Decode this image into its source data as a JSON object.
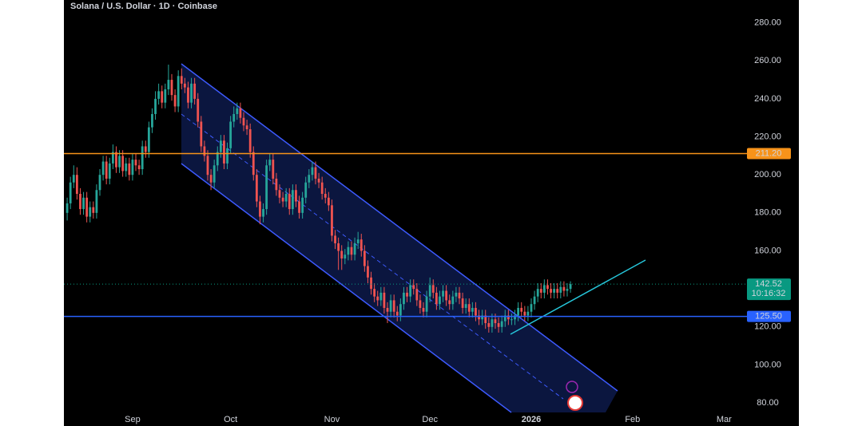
{
  "chart_data": {
    "type": "candlestick",
    "title": "Solana / U.S. Dollar · 1D · Coinbase",
    "x": [
      -20,
      -19,
      -18,
      -17,
      -16,
      -15,
      -14,
      -13,
      -12,
      -11,
      -10,
      -9,
      -8,
      -7,
      -6,
      -5,
      -4,
      -3,
      -2,
      -1,
      0,
      1,
      2,
      3,
      4,
      5,
      6,
      7,
      8,
      9,
      10,
      11,
      12,
      13,
      14,
      15,
      16,
      17,
      18,
      19,
      20,
      21,
      22,
      23,
      24,
      25,
      26,
      27,
      28,
      29,
      30,
      31,
      32,
      33,
      34,
      35,
      36,
      37,
      38,
      39,
      40,
      41,
      42,
      43,
      44,
      45,
      46,
      47,
      48,
      49,
      50,
      51,
      52,
      53,
      54,
      55,
      56,
      57,
      58,
      59,
      60,
      61,
      62,
      63,
      64,
      65,
      66,
      67,
      68,
      69,
      70,
      71,
      72,
      73,
      74,
      75,
      76,
      77,
      78,
      79,
      80,
      81,
      82,
      83,
      84,
      85,
      86,
      87,
      88,
      89,
      90,
      91,
      92,
      93,
      94,
      95,
      96,
      97,
      98,
      99,
      100,
      101,
      102,
      103,
      104,
      105,
      106,
      107,
      108,
      109,
      110,
      111,
      112,
      113,
      114,
      115,
      116,
      117,
      118,
      119,
      120,
      121,
      122,
      123,
      124,
      125,
      126,
      127,
      128,
      129,
      130,
      131,
      132,
      133,
      134
    ],
    "open": [
      180,
      185,
      196,
      200,
      190,
      182,
      188,
      178,
      183,
      180,
      192,
      200,
      207,
      198,
      206,
      212,
      204,
      210,
      202,
      206,
      200,
      208,
      205,
      203,
      215,
      212,
      225,
      232,
      240,
      244,
      238,
      245,
      250,
      242,
      236,
      252,
      248,
      246,
      238,
      248,
      240,
      228,
      215,
      210,
      200,
      196,
      205,
      212,
      218,
      206,
      214,
      228,
      232,
      235,
      230,
      226,
      224,
      212,
      200,
      186,
      178,
      182,
      205,
      208,
      198,
      192,
      188,
      186,
      190,
      182,
      192,
      186,
      180,
      188,
      196,
      200,
      204,
      198,
      196,
      190,
      188,
      184,
      168,
      164,
      160,
      156,
      158,
      162,
      158,
      164,
      166,
      160,
      152,
      146,
      140,
      136,
      134,
      138,
      130,
      128,
      134,
      128,
      126,
      132,
      138,
      136,
      142,
      140,
      134,
      130,
      128,
      136,
      142,
      138,
      132,
      136,
      139,
      134,
      132,
      136,
      138,
      135,
      130,
      132,
      128,
      130,
      126,
      124,
      126,
      122,
      120,
      124,
      122,
      120,
      123,
      126,
      124,
      124,
      126,
      130,
      128,
      126,
      128,
      132,
      136,
      140,
      138,
      142,
      140,
      138,
      140,
      138,
      141,
      139,
      140
    ],
    "high": [
      188,
      199,
      205,
      204,
      193,
      191,
      191,
      186,
      186,
      195,
      203,
      210,
      210,
      209,
      216,
      215,
      213,
      213,
      209,
      209,
      211,
      211,
      208,
      218,
      218,
      228,
      235,
      244,
      248,
      247,
      248,
      258,
      253,
      245,
      255,
      256,
      251,
      249,
      251,
      251,
      243,
      231,
      218,
      213,
      203,
      208,
      215,
      221,
      221,
      217,
      231,
      236,
      238,
      238,
      233,
      229,
      227,
      215,
      203,
      189,
      185,
      208,
      211,
      211,
      201,
      195,
      191,
      193,
      193,
      195,
      195,
      189,
      191,
      199,
      203,
      207,
      207,
      201,
      199,
      193,
      191,
      187,
      171,
      167,
      163,
      161,
      165,
      165,
      167,
      170,
      169,
      163,
      155,
      149,
      143,
      139,
      141,
      141,
      133,
      137,
      137,
      131,
      135,
      141,
      141,
      145,
      145,
      143,
      137,
      133,
      139,
      146,
      145,
      141,
      139,
      142,
      142,
      137,
      139,
      141,
      141,
      138,
      135,
      135,
      133,
      133,
      129,
      129,
      129,
      125,
      127,
      127,
      125,
      126,
      129,
      129,
      127,
      129,
      133,
      133,
      131,
      131,
      135,
      139,
      143,
      143,
      145,
      145,
      143,
      143,
      143,
      144,
      144,
      143,
      144
    ],
    "low": [
      176,
      182,
      193,
      187,
      179,
      179,
      175,
      175,
      177,
      177,
      189,
      197,
      195,
      195,
      203,
      201,
      201,
      199,
      199,
      197,
      197,
      202,
      200,
      200,
      209,
      209,
      222,
      229,
      237,
      235,
      235,
      242,
      239,
      233,
      233,
      245,
      243,
      235,
      235,
      237,
      225,
      212,
      207,
      197,
      192,
      193,
      202,
      209,
      203,
      203,
      211,
      225,
      229,
      227,
      223,
      221,
      209,
      197,
      183,
      174,
      175,
      179,
      202,
      195,
      189,
      185,
      183,
      183,
      179,
      179,
      183,
      177,
      177,
      185,
      193,
      197,
      195,
      193,
      187,
      185,
      181,
      165,
      161,
      150,
      150,
      153,
      155,
      155,
      155,
      161,
      157,
      149,
      143,
      137,
      133,
      131,
      131,
      127,
      122,
      125,
      125,
      123,
      123,
      129,
      133,
      133,
      137,
      131,
      127,
      125,
      125,
      133,
      135,
      129,
      129,
      133,
      131,
      129,
      129,
      133,
      132,
      127,
      127,
      125,
      125,
      123,
      121,
      121,
      119,
      117,
      117,
      119,
      117,
      117,
      120,
      121,
      121,
      121,
      123,
      125,
      123,
      123,
      125,
      129,
      133,
      135,
      135,
      137,
      135,
      135,
      135,
      135,
      136,
      136,
      138
    ],
    "close": [
      185,
      196,
      200,
      190,
      182,
      188,
      178,
      183,
      180,
      192,
      200,
      207,
      198,
      206,
      212,
      204,
      210,
      202,
      206,
      200,
      208,
      205,
      203,
      215,
      212,
      225,
      232,
      240,
      244,
      238,
      245,
      250,
      242,
      236,
      252,
      248,
      246,
      238,
      248,
      240,
      228,
      215,
      210,
      200,
      196,
      205,
      212,
      218,
      206,
      214,
      228,
      232,
      235,
      230,
      226,
      224,
      212,
      200,
      186,
      178,
      182,
      205,
      208,
      198,
      192,
      188,
      186,
      190,
      182,
      192,
      186,
      180,
      188,
      196,
      200,
      204,
      198,
      196,
      190,
      188,
      184,
      168,
      164,
      160,
      156,
      158,
      162,
      158,
      164,
      166,
      160,
      152,
      146,
      140,
      136,
      134,
      138,
      130,
      128,
      134,
      128,
      126,
      132,
      138,
      136,
      142,
      140,
      134,
      130,
      128,
      136,
      142,
      138,
      132,
      136,
      139,
      134,
      132,
      136,
      138,
      135,
      130,
      132,
      128,
      130,
      126,
      124,
      126,
      122,
      120,
      124,
      122,
      120,
      123,
      126,
      124,
      124,
      126,
      130,
      128,
      126,
      128,
      132,
      136,
      140,
      138,
      142,
      140,
      138,
      140,
      138,
      141,
      139,
      140,
      142.52
    ],
    "up_color": "#26a69a",
    "down_color": "#ef5350",
    "xlim": [
      -21,
      188
    ],
    "ylim": [
      75,
      292
    ],
    "xticks": [
      {
        "value": 0,
        "label": "Sep"
      },
      {
        "value": 30,
        "label": "Oct"
      },
      {
        "value": 61,
        "label": "Nov"
      },
      {
        "value": 91,
        "label": "Dec"
      },
      {
        "value": 122,
        "label": "2026"
      },
      {
        "value": 153,
        "label": "Feb"
      },
      {
        "value": 181,
        "label": "Mar"
      }
    ],
    "yticks": [
      {
        "value": 80,
        "label": "80.00"
      },
      {
        "value": 100,
        "label": "100.00"
      },
      {
        "value": 120,
        "label": "120.00"
      },
      {
        "value": 160,
        "label": "160.00"
      },
      {
        "value": 180,
        "label": "180.00"
      },
      {
        "value": 200,
        "label": "200.00"
      },
      {
        "value": 220,
        "label": "220.00"
      },
      {
        "value": 240,
        "label": "240.00"
      },
      {
        "value": 260,
        "label": "260.00"
      },
      {
        "value": 280,
        "label": "280.00"
      }
    ],
    "hlines": [
      {
        "value": 211.2,
        "label": "211.20",
        "color": "#f7931a"
      },
      {
        "value": 125.5,
        "label": "125.50",
        "color": "#2962ff"
      }
    ],
    "last_price": {
      "value": 142.52,
      "countdown": "10:16:32",
      "color": "#089981"
    }
  }
}
